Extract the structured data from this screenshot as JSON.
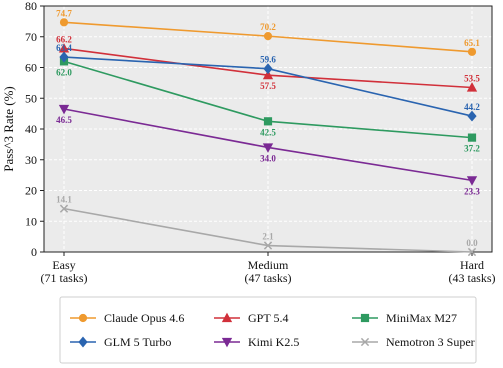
{
  "chart_data": {
    "type": "line",
    "title": "",
    "xlabel": "",
    "ylabel": "Pass^3 Rate (%)",
    "categories": [
      [
        "Easy",
        "(71 tasks)"
      ],
      [
        "Medium",
        "(47 tasks)"
      ],
      [
        "Hard",
        "(43 tasks)"
      ]
    ],
    "ylim": [
      0,
      80
    ],
    "yticks": [
      0,
      10,
      20,
      30,
      40,
      50,
      60,
      70,
      80
    ],
    "grid": true,
    "legend_placement": "bottom",
    "series": [
      {
        "name": "Claude Opus 4.6",
        "values": [
          74.7,
          70.2,
          65.1
        ],
        "labels": [
          "74.7",
          "70.2",
          "65.1"
        ],
        "color": "#ef9a2f",
        "marker": "circle",
        "label_pos": [
          "above",
          "above",
          "above"
        ]
      },
      {
        "name": "GPT 5.4",
        "values": [
          66.2,
          57.5,
          53.5
        ],
        "labels": [
          "66.2",
          "57.5",
          "53.5"
        ],
        "color": "#d1303a",
        "marker": "triangle-up",
        "label_pos": [
          "above",
          "below",
          "above"
        ]
      },
      {
        "name": "MiniMax M27",
        "values": [
          62.0,
          42.5,
          37.2
        ],
        "labels": [
          "62.0",
          "42.5",
          "37.2"
        ],
        "color": "#2e9a60",
        "marker": "square",
        "label_pos": [
          "below",
          "below",
          "below"
        ]
      },
      {
        "name": "GLM 5 Turbo",
        "values": [
          63.4,
          59.6,
          44.2
        ],
        "labels": [
          "63.4",
          "59.6",
          "44.2"
        ],
        "color": "#2a64b0",
        "marker": "diamond",
        "label_pos": [
          "above",
          "above",
          "above"
        ]
      },
      {
        "name": "Kimi K2.5",
        "values": [
          46.5,
          34.0,
          23.3
        ],
        "labels": [
          "46.5",
          "34.0",
          "23.3"
        ],
        "color": "#7b2a94",
        "marker": "triangle-down",
        "label_pos": [
          "below",
          "below",
          "below"
        ]
      },
      {
        "name": "Nemotron 3 Super",
        "values": [
          14.1,
          2.1,
          0.0
        ],
        "labels": [
          "14.1",
          "2.1",
          "0.0"
        ],
        "color": "#a8a8a8",
        "marker": "x",
        "label_pos": [
          "above",
          "above",
          "above"
        ]
      }
    ]
  }
}
